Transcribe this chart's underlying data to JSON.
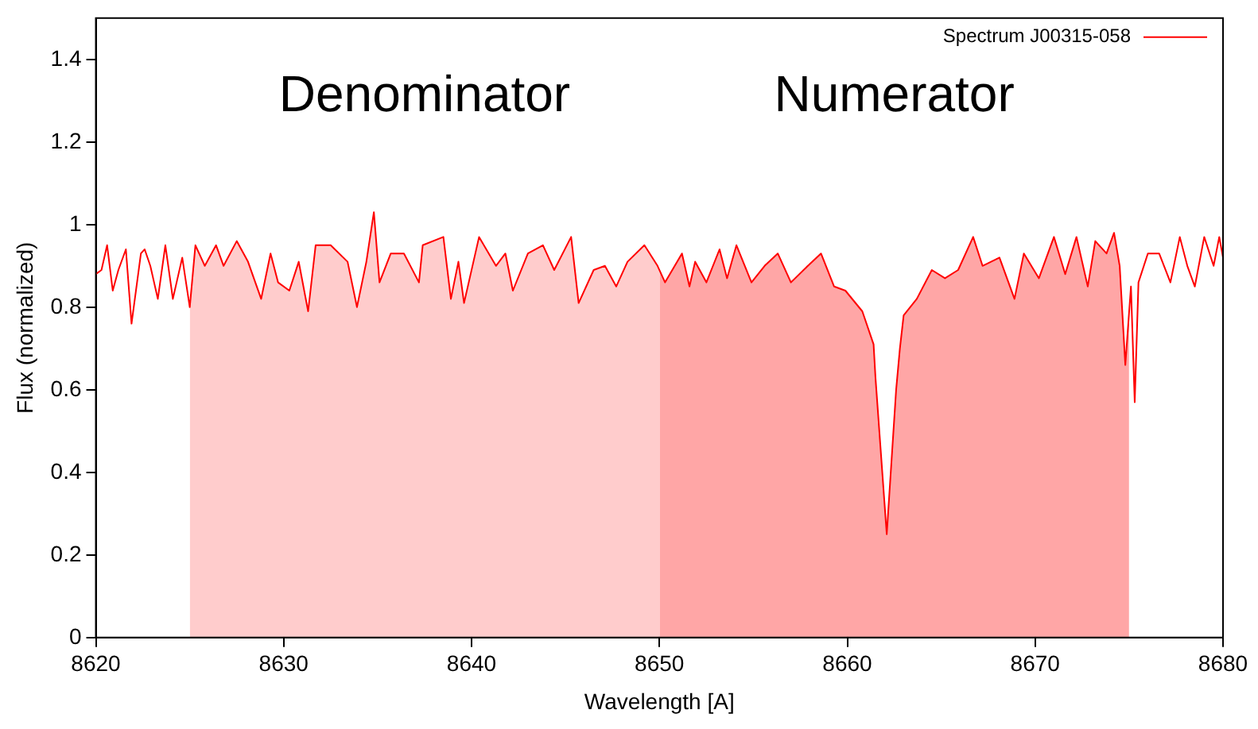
{
  "chart_data": {
    "type": "line",
    "xlabel": "Wavelength [A]",
    "ylabel": "Flux (normalized)",
    "xlim": [
      8620,
      8680
    ],
    "xticks": [
      8620,
      8630,
      8640,
      8650,
      8660,
      8670,
      8680
    ],
    "ylim": [
      0,
      1.5
    ],
    "yticks": [
      0,
      0.2,
      0.4,
      0.6,
      0.8,
      1,
      1.2,
      1.4
    ],
    "grid": false,
    "legend": "top right",
    "marker": "none",
    "line_style": "solid",
    "bands": [
      {
        "axis": "x",
        "from": 8625,
        "to": 8650,
        "label": "Denominator",
        "color": "#ff0000"
      },
      {
        "axis": "x",
        "from": 8650,
        "to": 8675,
        "label": "Numerator",
        "color": "#ff0000"
      }
    ],
    "series": [
      {
        "name": "Spectrum J00315-058",
        "color": "#ff0000",
        "x": [
          8620,
          8620.3,
          8620.6,
          8620.9,
          8621.2,
          8621.6,
          8621.9,
          8622.4,
          8622.6,
          8622.9,
          8623.3,
          8623.7,
          8624.1,
          8624.6,
          8625.0,
          8625.3,
          8625.8,
          8626.4,
          8626.8,
          8627.5,
          8628.1,
          8628.8,
          8629.3,
          8629.7,
          8630.3,
          8630.8,
          8631.3,
          8631.7,
          8632.5,
          8633.4,
          8633.9,
          8634.4,
          8634.8,
          8635.1,
          8635.7,
          8636.4,
          8637.2,
          8637.4,
          8638.5,
          8638.9,
          8639.3,
          8639.6,
          8640.4,
          8641.3,
          8641.8,
          8642.2,
          8643.0,
          8643.8,
          8644.4,
          8645.3,
          8645.7,
          8646.5,
          8647.1,
          8647.7,
          8648.3,
          8649.2,
          8649.9,
          8650.3,
          8651.2,
          8651.6,
          8651.9,
          8652.5,
          8653.2,
          8653.6,
          8654.1,
          8654.9,
          8655.6,
          8656.3,
          8657.0,
          8657.9,
          8658.6,
          8659.3,
          8659.9,
          8660.8,
          8661.4,
          8661.5,
          8662.1,
          8662.6,
          8662.8,
          8663.0,
          8663.7,
          8664.5,
          8665.2,
          8665.9,
          8666.7,
          8667.2,
          8668.1,
          8668.9,
          8669.4,
          8670.2,
          8671.0,
          8671.6,
          8672.2,
          8672.8,
          8673.2,
          8673.8,
          8674.2,
          8674.5,
          8674.8,
          8675.1,
          8675.3,
          8675.5,
          8676.0,
          8676.6,
          8677.2,
          8677.7,
          8678.1,
          8678.5,
          8679.0,
          8679.5,
          8679.8,
          8680
        ],
        "values": [
          0.88,
          0.89,
          0.95,
          0.84,
          0.89,
          0.94,
          0.76,
          0.93,
          0.94,
          0.9,
          0.82,
          0.95,
          0.82,
          0.92,
          0.8,
          0.95,
          0.9,
          0.95,
          0.9,
          0.96,
          0.91,
          0.82,
          0.93,
          0.86,
          0.84,
          0.91,
          0.79,
          0.95,
          0.95,
          0.91,
          0.8,
          0.91,
          1.03,
          0.86,
          0.93,
          0.93,
          0.86,
          0.95,
          0.97,
          0.82,
          0.91,
          0.81,
          0.97,
          0.9,
          0.93,
          0.84,
          0.93,
          0.95,
          0.89,
          0.97,
          0.81,
          0.89,
          0.9,
          0.85,
          0.91,
          0.95,
          0.9,
          0.86,
          0.93,
          0.85,
          0.91,
          0.86,
          0.94,
          0.87,
          0.95,
          0.86,
          0.9,
          0.93,
          0.86,
          0.9,
          0.93,
          0.85,
          0.84,
          0.79,
          0.71,
          0.63,
          0.25,
          0.6,
          0.7,
          0.78,
          0.82,
          0.89,
          0.87,
          0.89,
          0.97,
          0.9,
          0.92,
          0.82,
          0.93,
          0.87,
          0.97,
          0.88,
          0.97,
          0.85,
          0.96,
          0.93,
          0.98,
          0.9,
          0.66,
          0.85,
          0.57,
          0.86,
          0.93,
          0.93,
          0.86,
          0.97,
          0.9,
          0.85,
          0.97,
          0.9,
          0.97,
          0.92
        ]
      }
    ]
  }
}
